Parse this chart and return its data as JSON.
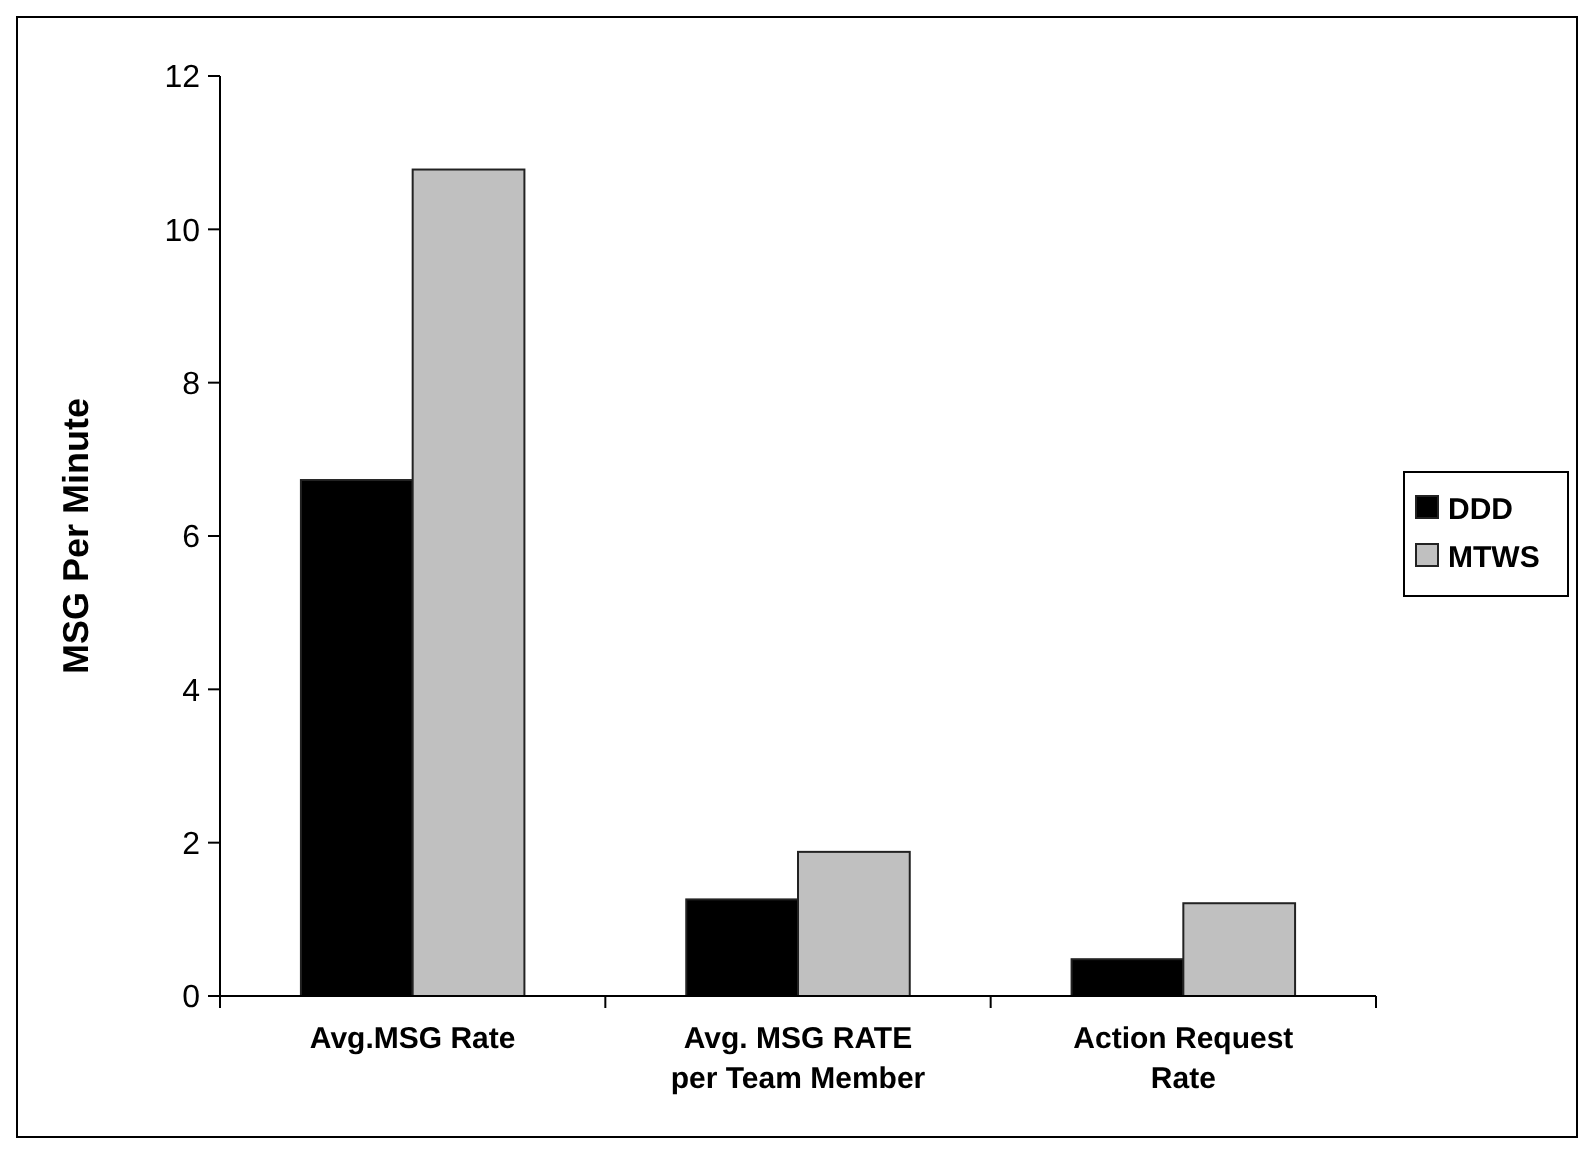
{
  "chart_data": {
    "type": "bar",
    "ylabel": "MSG Per Minute",
    "categories": [
      "Avg.MSG Rate",
      "Avg. MSG RATE per Team Member",
      "Action Request Rate"
    ],
    "series": [
      {
        "name": "DDD",
        "color": "#000000",
        "values": [
          6.73,
          1.26,
          0.48
        ]
      },
      {
        "name": "MTWS",
        "color": "#c0c0c0",
        "values": [
          10.78,
          1.88,
          1.21
        ]
      }
    ],
    "ylim": [
      0,
      12
    ],
    "yticks": [
      0,
      2,
      4,
      6,
      8,
      10,
      12
    ],
    "grid": false,
    "legend": "right"
  }
}
